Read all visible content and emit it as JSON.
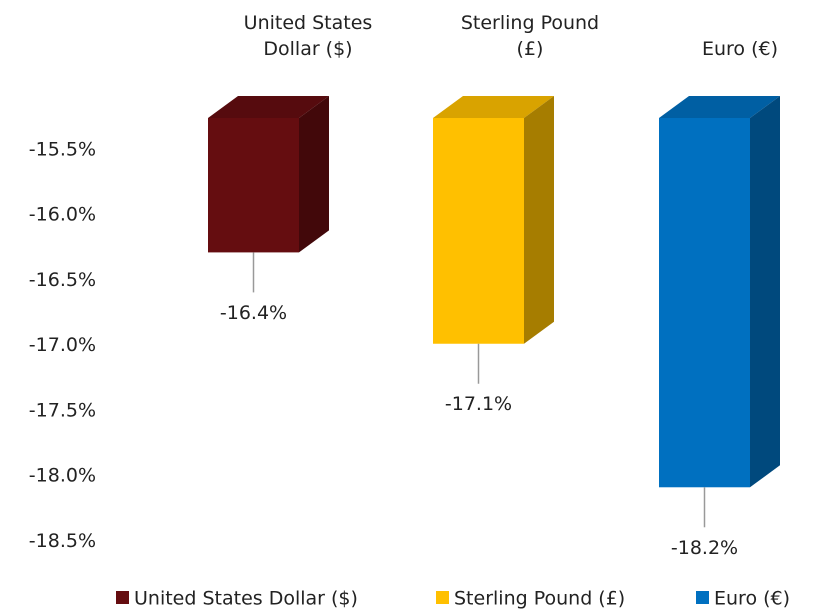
{
  "chart_data": {
    "type": "bar3d",
    "categories": [
      "United States Dollar ($)",
      "Sterling Pound (£)",
      "Euro (€)"
    ],
    "values": [
      -16.4,
      -17.1,
      -18.2
    ],
    "value_labels": [
      "-16.4%",
      "-17.1%",
      "-18.2%"
    ],
    "colors": [
      "#650d10",
      "#ffc000",
      "#0070c0"
    ],
    "ylim": [
      -18.65,
      -15.37
    ],
    "yticks": [
      {
        "value": -15.5,
        "label": "-15.5%"
      },
      {
        "value": -16.0,
        "label": "-16.0%"
      },
      {
        "value": -16.5,
        "label": "-16.5%"
      },
      {
        "value": -17.0,
        "label": "-17.0%"
      },
      {
        "value": -17.5,
        "label": "-17.5%"
      },
      {
        "value": -18.0,
        "label": "-18.0%"
      },
      {
        "value": -18.5,
        "label": "-18.5%"
      }
    ],
    "legend": "bottom"
  }
}
